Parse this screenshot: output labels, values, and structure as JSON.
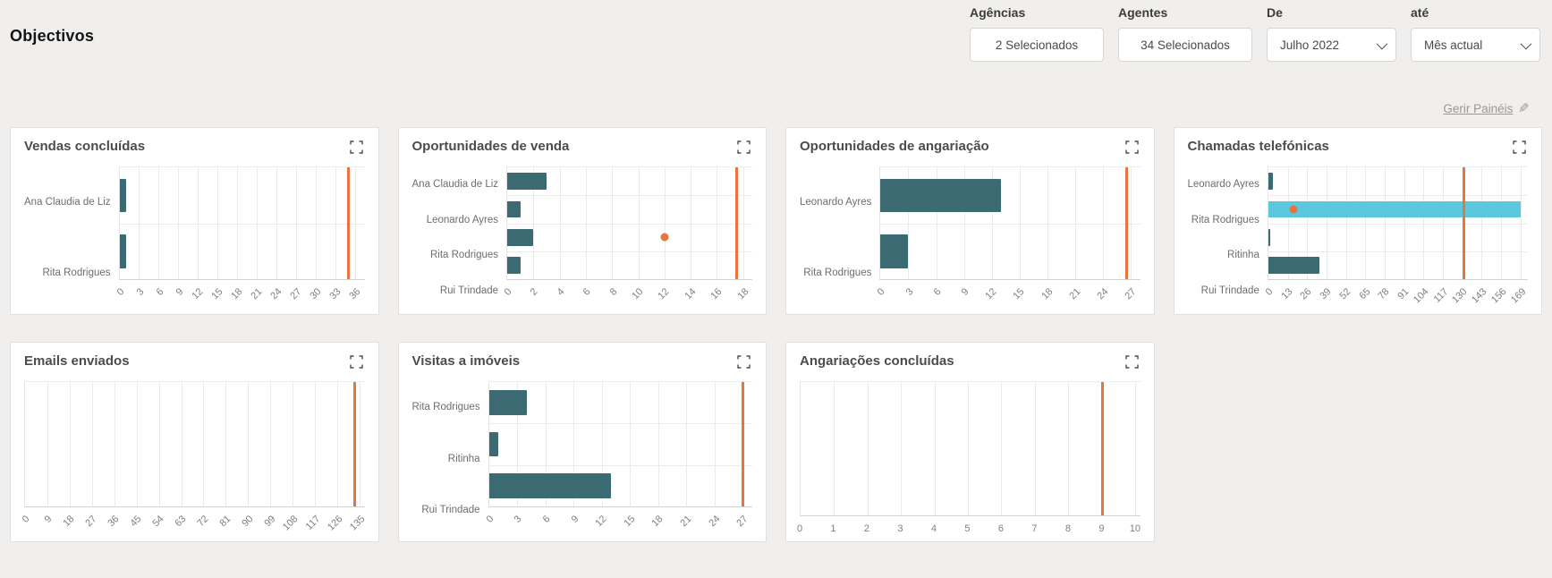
{
  "header": {
    "title": "Objectivos",
    "filters": [
      {
        "label": "Agências",
        "value": "2 Selecionados",
        "type": "multiselect"
      },
      {
        "label": "Agentes",
        "value": "34 Selecionados",
        "type": "multiselect"
      },
      {
        "label": "De",
        "value": "Julho 2022",
        "type": "select"
      },
      {
        "label": "até",
        "value": "Mês actual",
        "type": "select"
      }
    ],
    "manage_link": "Gerir Painéis",
    "manage_icon": "✎"
  },
  "colors": {
    "bar": "#3b6a73",
    "bar_highlight": "#5bc8dd",
    "target": "#e87540",
    "page_background": "#f0efee"
  },
  "chart_data": [
    {
      "type": "bar",
      "orientation": "horizontal",
      "title": "Vendas concluídas",
      "categories": [
        "Ana Claudia de Liz",
        "Rita Rodrigues"
      ],
      "values": [
        1,
        1
      ],
      "ticks": [
        0,
        3,
        6,
        9,
        12,
        15,
        18,
        21,
        24,
        27,
        30,
        33,
        36
      ],
      "xlim": [
        0,
        37.5
      ],
      "target": 35,
      "dot": null,
      "rotated_tick_labels": true
    },
    {
      "type": "bar",
      "orientation": "horizontal",
      "title": "Oportunidades de venda",
      "categories": [
        "Ana Claudia de Liz",
        "Leonardo Ayres",
        "Rita Rodrigues",
        "Rui Trindade"
      ],
      "values": [
        3,
        1,
        2,
        1
      ],
      "ticks": [
        0,
        2,
        4,
        6,
        8,
        10,
        12,
        14,
        16,
        18
      ],
      "xlim": [
        0,
        18.7
      ],
      "target": 17.5,
      "dot": {
        "category_index": 2,
        "value": 12
      },
      "rotated_tick_labels": true
    },
    {
      "type": "bar",
      "orientation": "horizontal",
      "title": "Oportunidades de angariação",
      "categories": [
        "Leonardo Ayres",
        "Rita Rodrigues"
      ],
      "values": [
        13,
        3
      ],
      "ticks": [
        0,
        3,
        6,
        9,
        12,
        15,
        18,
        21,
        24,
        27
      ],
      "xlim": [
        0,
        28
      ],
      "target": 26.5,
      "dot": null,
      "rotated_tick_labels": true
    },
    {
      "type": "bar",
      "orientation": "horizontal",
      "title": "Chamadas telefónicas",
      "categories": [
        "Leonardo Ayres",
        "Rita Rodrigues",
        "Ritinha",
        "Rui Trindade"
      ],
      "values": [
        3,
        169,
        1,
        34
      ],
      "bar_colors": [
        "#3b6a73",
        "#5bc8dd",
        "#3b6a73",
        "#3b6a73"
      ],
      "ticks": [
        0,
        13,
        26,
        39,
        52,
        65,
        78,
        91,
        104,
        117,
        130,
        143,
        156,
        169
      ],
      "xlim": [
        0,
        174
      ],
      "target": 131,
      "dot": {
        "category_index": 1,
        "value": 17
      },
      "rotated_tick_labels": true
    },
    {
      "type": "bar",
      "orientation": "horizontal",
      "title": "Emails enviados",
      "categories": [],
      "values": [],
      "ticks": [
        0,
        9,
        18,
        27,
        36,
        45,
        54,
        63,
        72,
        81,
        90,
        99,
        108,
        117,
        126,
        135
      ],
      "xlim": [
        0,
        137
      ],
      "target": 133,
      "dot": null,
      "rotated_tick_labels": true
    },
    {
      "type": "bar",
      "orientation": "horizontal",
      "title": "Visitas a imóveis",
      "categories": [
        "Rita Rodrigues",
        "Ritinha",
        "Rui Trindade"
      ],
      "values": [
        4,
        1,
        13
      ],
      "ticks": [
        0,
        3,
        6,
        9,
        12,
        15,
        18,
        21,
        24,
        27
      ],
      "xlim": [
        0,
        28
      ],
      "target": 27,
      "dot": null,
      "rotated_tick_labels": true
    },
    {
      "type": "bar",
      "orientation": "horizontal",
      "title": "Angariações concluídas",
      "categories": [],
      "values": [],
      "ticks": [
        0,
        1,
        2,
        3,
        4,
        5,
        6,
        7,
        8,
        9,
        10
      ],
      "xlim": [
        0,
        10.15
      ],
      "target": 9,
      "dot": null,
      "rotated_tick_labels": false
    }
  ]
}
